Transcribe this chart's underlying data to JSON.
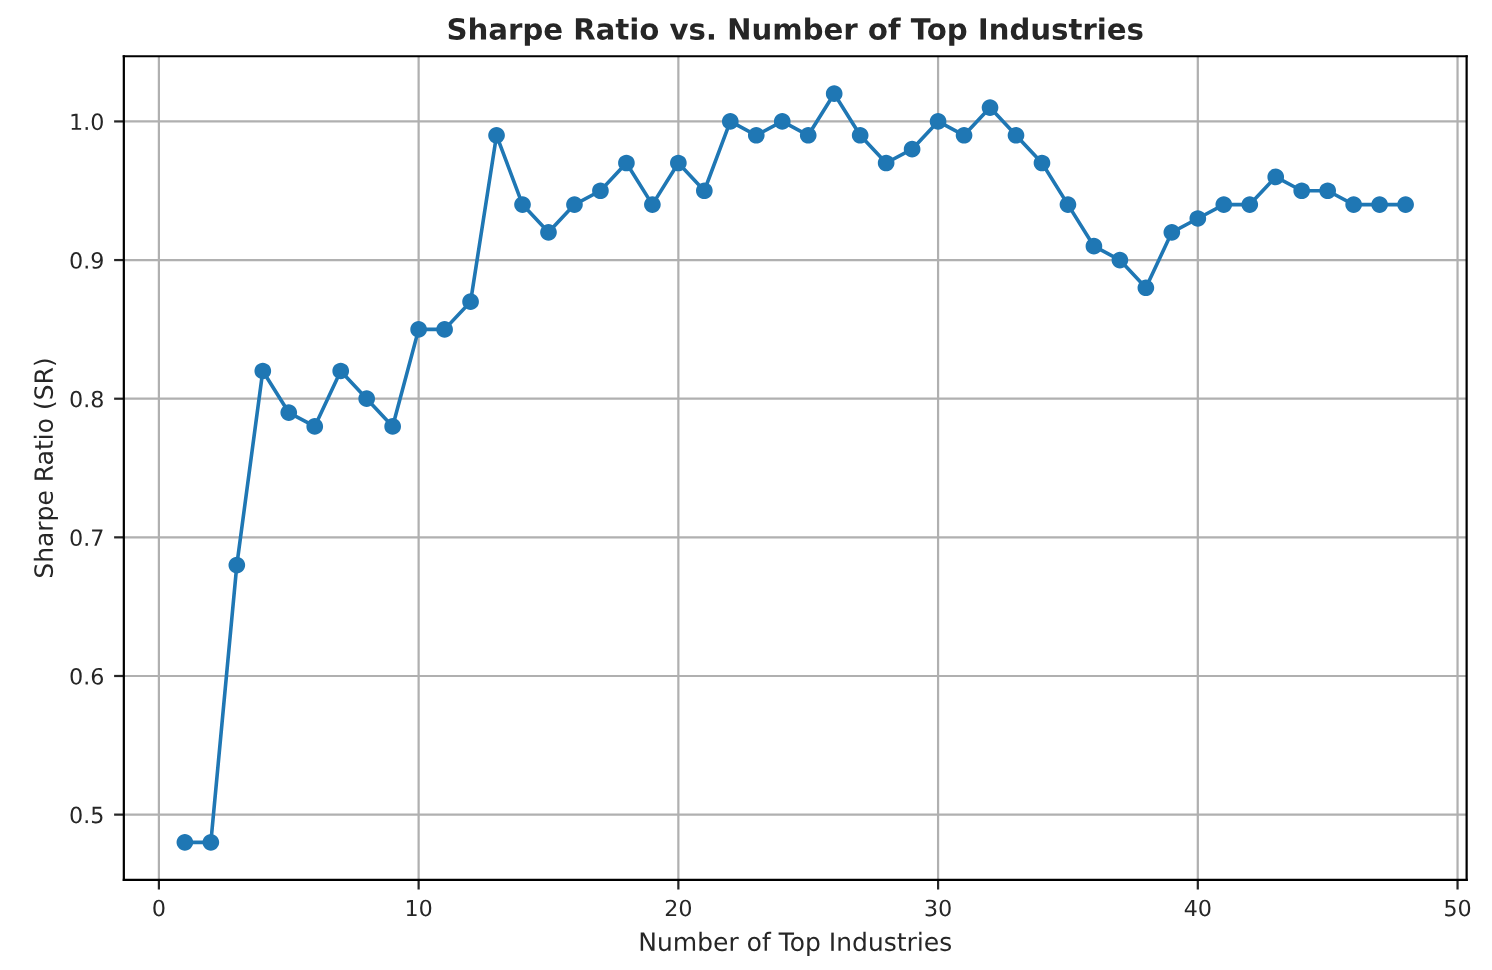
{
  "chart_data": {
    "type": "line",
    "title": "Sharpe Ratio vs. Number of Top Industries",
    "xlabel": "Number of Top Industries",
    "ylabel": "Sharpe Ratio (SR)",
    "x": [
      1,
      2,
      3,
      4,
      5,
      6,
      7,
      8,
      9,
      10,
      11,
      12,
      13,
      14,
      15,
      16,
      17,
      18,
      19,
      20,
      21,
      22,
      23,
      24,
      25,
      26,
      27,
      28,
      29,
      30,
      31,
      32,
      33,
      34,
      35,
      36,
      37,
      38,
      39,
      40,
      41,
      42,
      43,
      44,
      45,
      46,
      47,
      48
    ],
    "series": [
      {
        "color": "#1f77b4",
        "values": [
          0.48,
          0.48,
          0.68,
          0.82,
          0.79,
          0.78,
          0.82,
          0.8,
          0.78,
          0.85,
          0.85,
          0.87,
          0.99,
          0.94,
          0.92,
          0.94,
          0.95,
          0.97,
          0.94,
          0.97,
          0.95,
          1.0,
          0.99,
          1.0,
          0.99,
          1.02,
          0.99,
          0.97,
          0.98,
          1.0,
          0.99,
          1.01,
          0.99,
          0.97,
          0.94,
          0.91,
          0.9,
          0.88,
          0.92,
          0.93,
          0.94,
          0.94,
          0.96,
          0.95,
          0.95,
          0.94,
          0.94,
          0.94
        ]
      }
    ],
    "xlim": [
      -1.35,
      50.35
    ],
    "ylim": [
      0.453,
      1.047
    ],
    "xticks": [
      0,
      10,
      20,
      30,
      40,
      50
    ],
    "yticks": [
      0.5,
      0.6,
      0.7,
      0.8,
      0.9,
      {
        "value": 1.0,
        "label": "1.0"
      }
    ],
    "grid": true,
    "marker": "circle",
    "line_style": "solid",
    "legend": false
  }
}
